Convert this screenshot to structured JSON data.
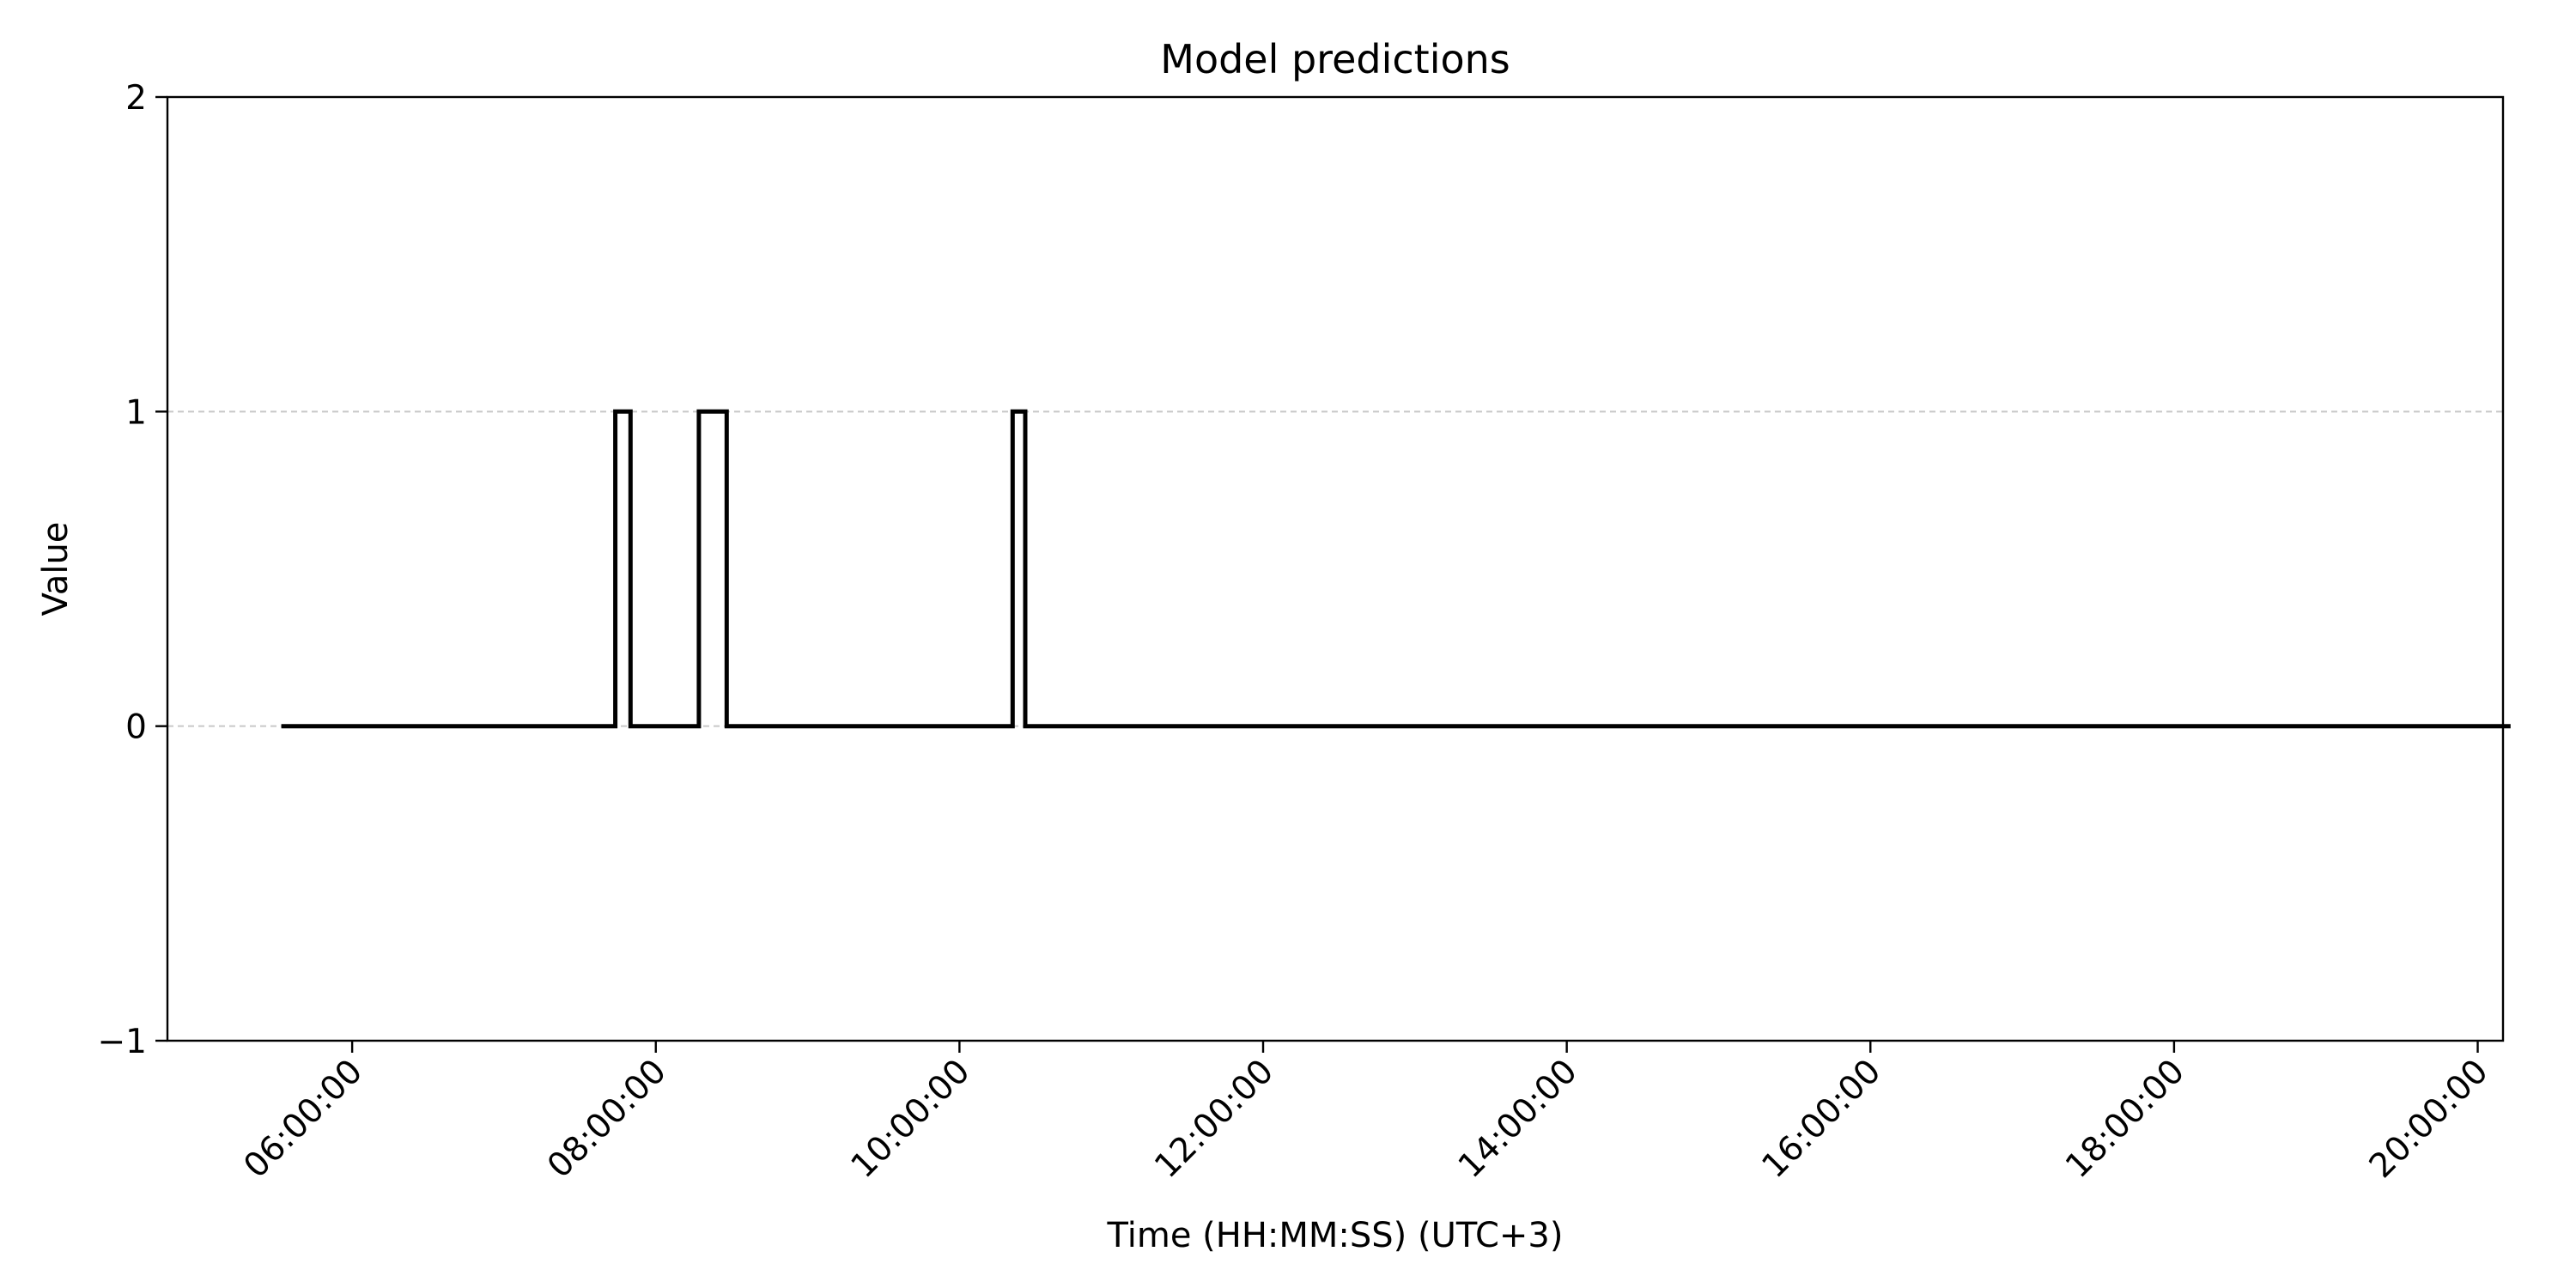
{
  "chart_data": {
    "type": "line",
    "step": true,
    "title": "Model predictions",
    "xlabel": "Time (HH:MM:SS) (UTC+3)",
    "ylabel": "Value",
    "ylim": [
      -1,
      2
    ],
    "xlim": [
      "04:47:00",
      "20:10:00"
    ],
    "yticks": [
      -1,
      0,
      1,
      2
    ],
    "xticks": [
      "06:00:00",
      "08:00:00",
      "10:00:00",
      "12:00:00",
      "14:00:00",
      "16:00:00",
      "18:00:00",
      "20:00:00"
    ],
    "grid": "horizontal dashed at y ticks",
    "legend": false,
    "series": [
      {
        "color": "#000000",
        "points": [
          {
            "x": "05:32:00",
            "y": 0
          },
          {
            "x": "07:44:00",
            "y": 0
          },
          {
            "x": "07:44:00",
            "y": 1
          },
          {
            "x": "07:50:00",
            "y": 1
          },
          {
            "x": "07:50:00",
            "y": 0
          },
          {
            "x": "08:17:00",
            "y": 0
          },
          {
            "x": "08:17:00",
            "y": 1
          },
          {
            "x": "08:28:00",
            "y": 1
          },
          {
            "x": "08:28:00",
            "y": 0
          },
          {
            "x": "10:21:00",
            "y": 0
          },
          {
            "x": "10:21:00",
            "y": 1
          },
          {
            "x": "10:26:00",
            "y": 1
          },
          {
            "x": "10:26:00",
            "y": 0
          },
          {
            "x": "20:13:00",
            "y": 0
          }
        ]
      }
    ]
  }
}
